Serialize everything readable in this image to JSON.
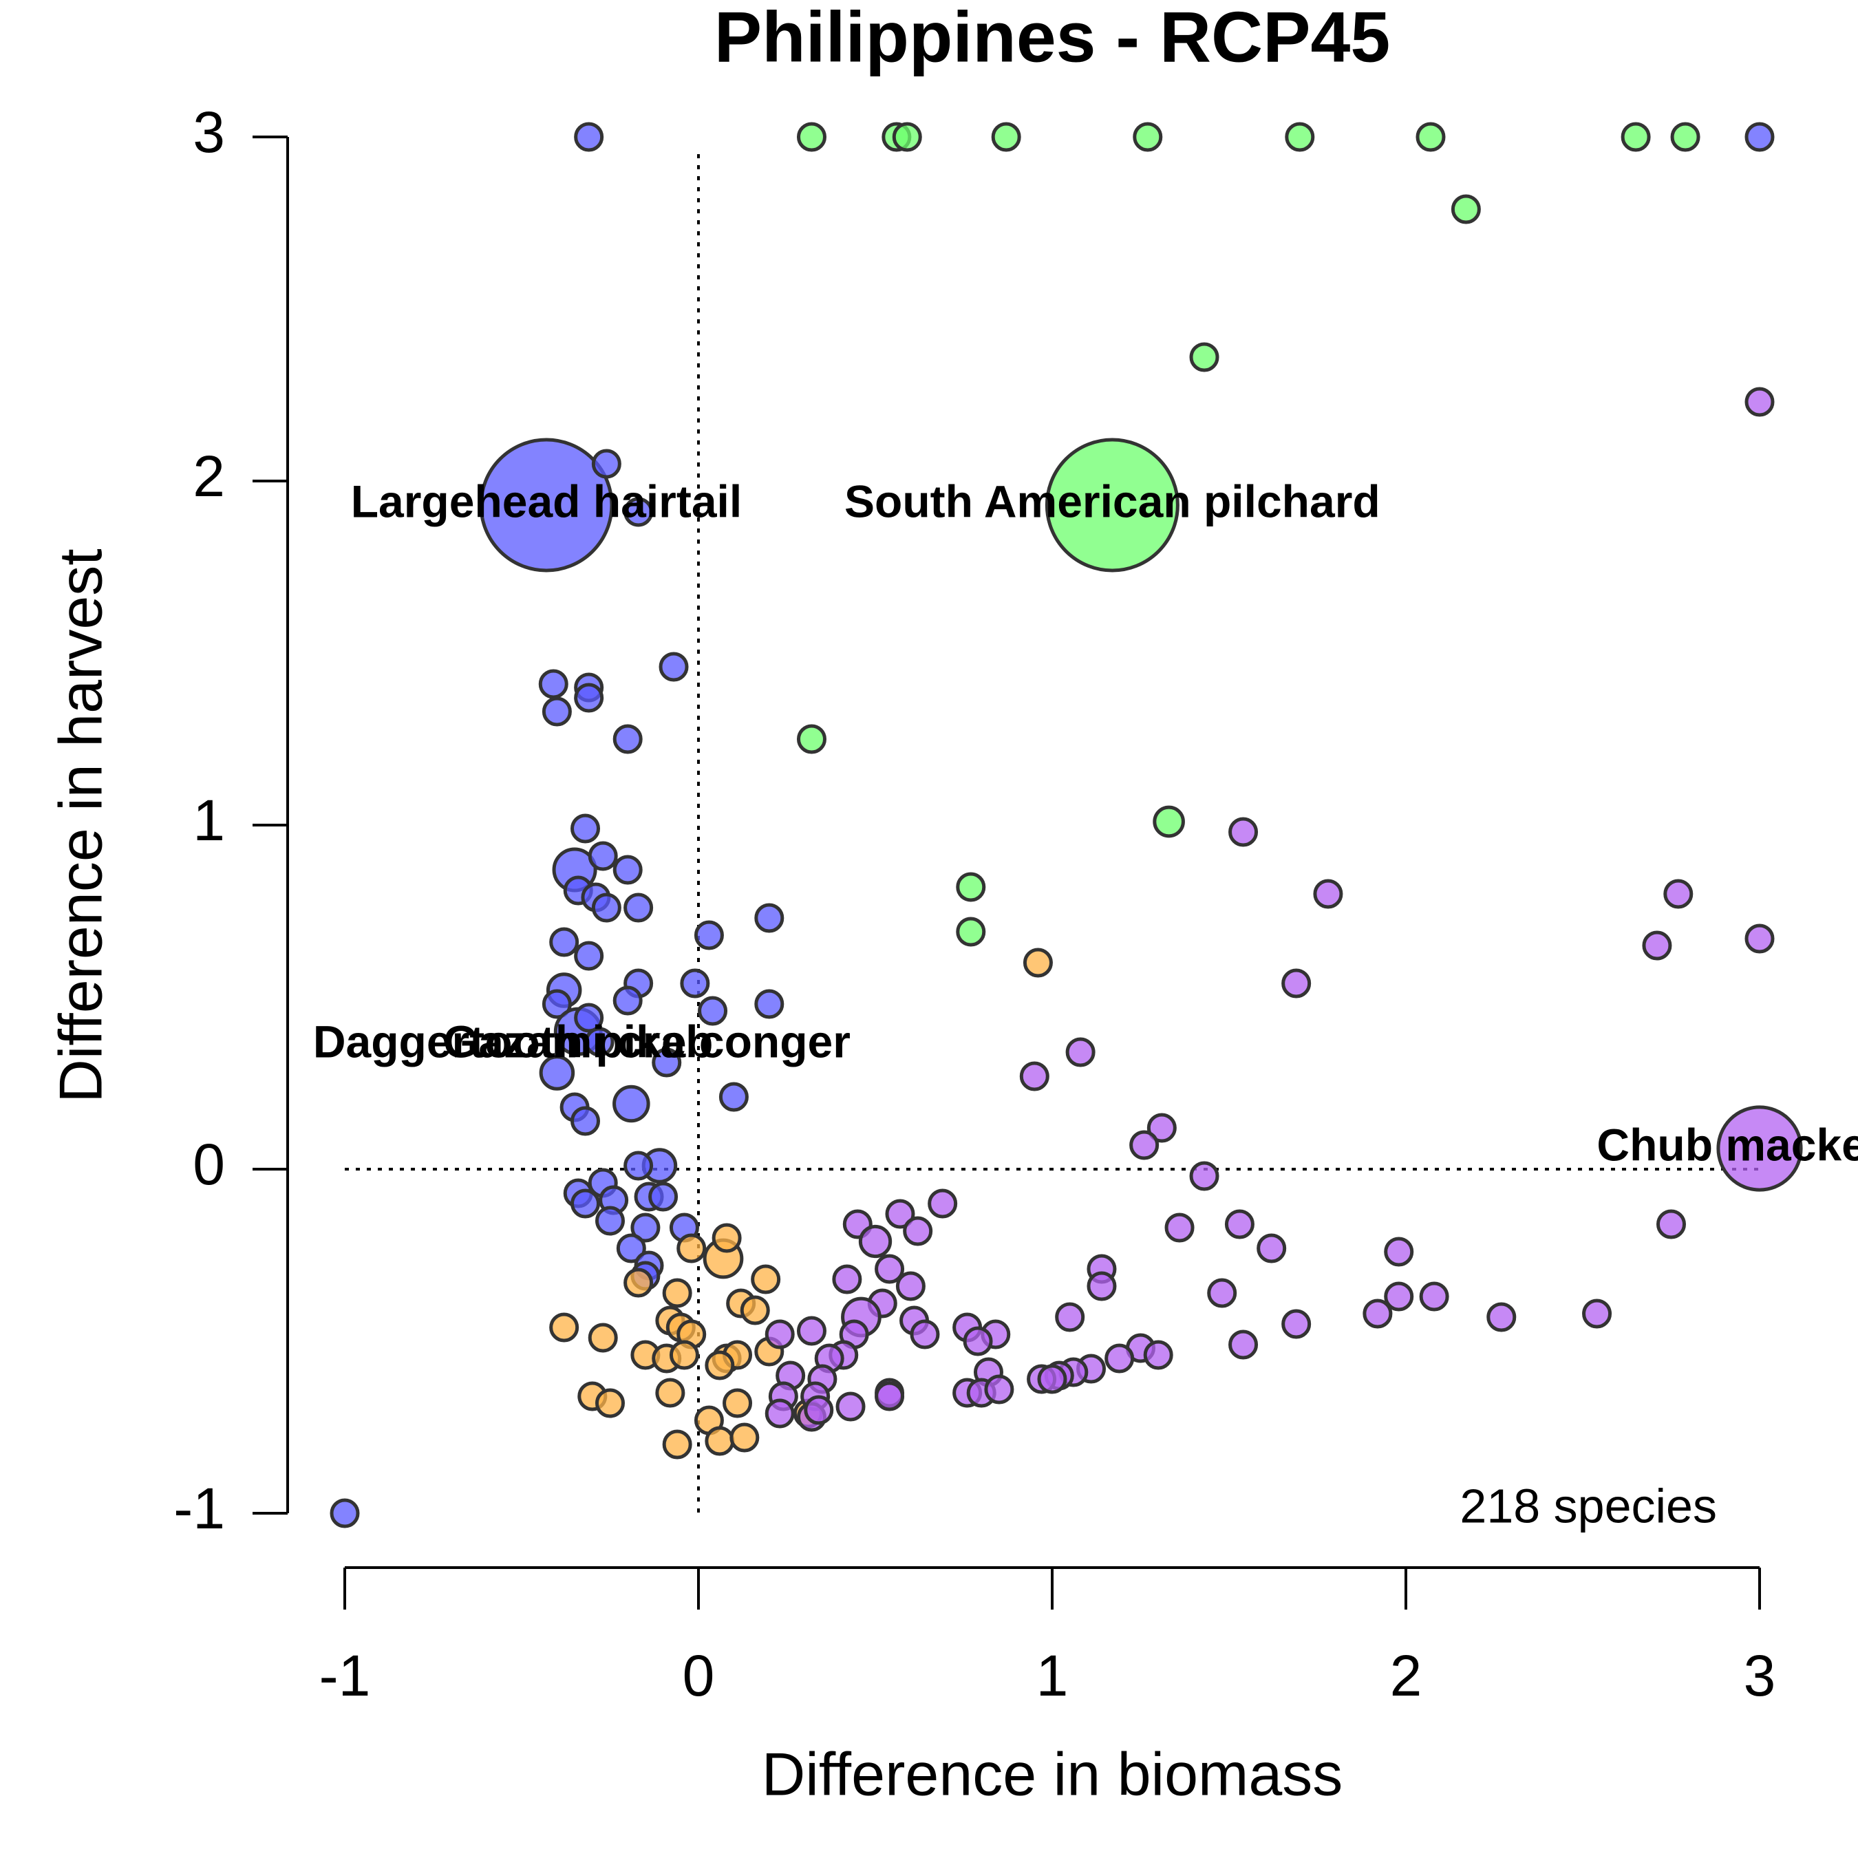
{
  "chart_data": {
    "type": "bubble",
    "title": "Philippines - RCP45",
    "xlabel": "Difference in biomass",
    "ylabel": "Difference in harvest",
    "xlim": [
      -1,
      3
    ],
    "ylim": [
      -1,
      3
    ],
    "xticks": [
      -1,
      0,
      1,
      2,
      3
    ],
    "yticks": [
      -1,
      0,
      1,
      2,
      3
    ],
    "note": "218 species",
    "series": [
      {
        "color": "#5a5aff",
        "x": [
          -0.31,
          3,
          -0.43,
          -0.26,
          -0.17,
          -0.07,
          -0.41,
          -0.31,
          -0.31,
          -0.4,
          -0.2,
          -0.32,
          -0.35,
          -0.27,
          -0.2,
          -0.34,
          -0.29,
          -0.26,
          -0.17,
          0.2,
          0.03,
          -0.38,
          -0.31,
          -0.17,
          -0.01,
          -0.2,
          0.2,
          0.04,
          -0.38,
          -0.4,
          -0.34,
          -0.31,
          -0.09,
          -0.4,
          -0.28,
          0.1,
          -0.19,
          -0.35,
          -0.32,
          -0.11,
          -0.17,
          -0.34,
          -0.27,
          -0.24,
          -0.32,
          -0.14,
          -0.1,
          -0.25,
          -0.15,
          -0.04,
          -0.19,
          -0.14,
          -0.15,
          -1
        ],
        "values": [
          3,
          3,
          1.93,
          2.05,
          1.91,
          1.46,
          1.41,
          1.4,
          1.37,
          1.33,
          1.25,
          0.99,
          0.87,
          0.91,
          0.87,
          0.81,
          0.79,
          0.76,
          0.76,
          0.73,
          0.68,
          0.66,
          0.62,
          0.54,
          0.54,
          0.49,
          0.48,
          0.46,
          0.52,
          0.48,
          0.4,
          0.44,
          0.31,
          0.28,
          0.37,
          0.21,
          0.19,
          0.18,
          0.14,
          0.01,
          0.01,
          -0.07,
          -0.04,
          -0.09,
          -0.1,
          -0.08,
          -0.08,
          -0.15,
          -0.17,
          -0.17,
          -0.23,
          -0.28,
          -0.31,
          -1
        ],
        "sizes": [
          1,
          1,
          25,
          1,
          1,
          1,
          1,
          1,
          1,
          1,
          1,
          1,
          2.5,
          1,
          1,
          1,
          1,
          1,
          1,
          1,
          1,
          1,
          1,
          1,
          1,
          1,
          1,
          1,
          1.5,
          1,
          3,
          1,
          1,
          1.5,
          1,
          1,
          1.7,
          1,
          1,
          1.5,
          1,
          1,
          1,
          1,
          1,
          1,
          1,
          1,
          1,
          1,
          1,
          1,
          1,
          1
        ]
      },
      {
        "color": "#ffb347",
        "x": [
          0.96,
          -0.02,
          0.07,
          0.08,
          0.19,
          -0.17,
          -0.06,
          0.12,
          0.16,
          -0.08,
          -0.05,
          -0.38,
          -0.27,
          -0.02,
          -0.15,
          -0.09,
          -0.04,
          0.08,
          0.11,
          0.2,
          0.06,
          -0.3,
          -0.25,
          -0.08,
          0.11,
          0.03,
          0.06,
          0.13,
          -0.06,
          0.31
        ],
        "values": [
          0.6,
          -0.23,
          -0.26,
          -0.2,
          -0.32,
          -0.33,
          -0.36,
          -0.39,
          -0.41,
          -0.44,
          -0.46,
          -0.46,
          -0.49,
          -0.48,
          -0.54,
          -0.55,
          -0.54,
          -0.55,
          -0.54,
          -0.53,
          -0.57,
          -0.66,
          -0.68,
          -0.65,
          -0.68,
          -0.73,
          -0.79,
          -0.78,
          -0.8,
          -0.71
        ],
        "sizes": [
          1,
          1,
          2,
          1,
          1,
          1,
          1,
          1,
          1,
          1,
          1,
          1,
          1,
          1,
          1,
          1,
          1,
          1,
          1,
          1,
          1,
          1,
          1,
          1,
          1,
          1,
          1,
          1,
          1,
          1
        ]
      },
      {
        "color": "#6cff6c",
        "x": [
          0.32,
          0.56,
          0.59,
          0.87,
          1.27,
          1.7,
          2.07,
          2.65,
          2.79,
          2.17,
          1.43,
          1.17,
          0.32,
          1.33,
          0.77,
          0.77
        ],
        "values": [
          3,
          3,
          3,
          3,
          3,
          3,
          3,
          3,
          3,
          2.79,
          2.36,
          1.93,
          1.25,
          1.01,
          0.82,
          0.69
        ],
        "sizes": [
          1,
          1,
          1,
          1,
          1,
          1,
          1,
          1,
          1,
          1,
          1,
          25,
          1,
          1.2,
          1,
          1
        ]
      },
      {
        "color": "#b362f2",
        "x": [
          3,
          1.54,
          1.78,
          2.77,
          2.71,
          3,
          1.69,
          1.08,
          0.95,
          1.31,
          1.26,
          3,
          1.43,
          0.69,
          0.45,
          0.57,
          0.62,
          0.5,
          1.36,
          1.53,
          1.62,
          2.75,
          1.98,
          1.14,
          1.14,
          0.54,
          0.42,
          0.6,
          1.48,
          1.98,
          2.08,
          1.92,
          2.27,
          2.54,
          1.05,
          0.52,
          0.46,
          1.69,
          0.76,
          0.61,
          0.23,
          0.32,
          0.44,
          0.64,
          0.84,
          0.79,
          1.54,
          1.25,
          1.3,
          1.19,
          0.41,
          0.37,
          1.11,
          1.06,
          1.02,
          0.97,
          1.0,
          0.35,
          0.26,
          0.82,
          0.76,
          0.8,
          0.85,
          0.54,
          0.54,
          0.24,
          0.33,
          0.43,
          0.23,
          0.32,
          0.34
        ],
        "values": [
          2.23,
          0.98,
          0.8,
          0.8,
          0.65,
          0.67,
          0.54,
          0.34,
          0.27,
          0.12,
          0.07,
          0.06,
          -0.02,
          -0.1,
          -0.16,
          -0.13,
          -0.18,
          -0.21,
          -0.17,
          -0.16,
          -0.23,
          -0.16,
          -0.24,
          -0.29,
          -0.34,
          -0.29,
          -0.32,
          -0.34,
          -0.36,
          -0.37,
          -0.37,
          -0.42,
          -0.43,
          -0.42,
          -0.43,
          -0.39,
          -0.43,
          -0.45,
          -0.46,
          -0.44,
          -0.48,
          -0.47,
          -0.48,
          -0.48,
          -0.48,
          -0.5,
          -0.51,
          -0.52,
          -0.54,
          -0.55,
          -0.54,
          -0.55,
          -0.58,
          -0.59,
          -0.6,
          -0.61,
          -0.61,
          -0.61,
          -0.6,
          -0.59,
          -0.65,
          -0.65,
          -0.64,
          -0.65,
          -0.66,
          -0.66,
          -0.66,
          -0.69,
          -0.71,
          -0.72,
          -0.7
        ],
        "sizes": [
          1,
          1,
          1,
          1,
          1,
          1,
          1,
          1,
          1,
          1,
          1,
          10,
          1,
          1,
          1,
          1,
          1,
          1.3,
          1,
          1,
          1,
          1,
          1,
          1,
          1,
          1,
          1,
          1,
          1,
          1,
          1,
          1,
          1,
          1,
          1,
          1,
          2,
          1,
          1,
          1,
          1,
          1,
          1,
          1,
          1,
          1,
          1,
          1,
          1,
          1,
          1,
          1,
          1,
          1,
          1,
          1,
          1,
          1,
          1,
          1,
          1,
          1,
          1,
          1,
          1,
          1,
          1,
          1,
          1,
          1,
          1
        ]
      }
    ],
    "labels": [
      {
        "text": "Largehead hairtail",
        "x": -0.43,
        "y": 1.93
      },
      {
        "text": "South American pilchard",
        "x": 1.17,
        "y": 1.93
      },
      {
        "text": "Daggertooth pike conger",
        "x": -0.33,
        "y": 0.36
      },
      {
        "text": "Gazami crab",
        "x": -0.34,
        "y": 0.36
      },
      {
        "text": "Chub mackerel",
        "x": 3,
        "y": 0.06
      }
    ]
  }
}
